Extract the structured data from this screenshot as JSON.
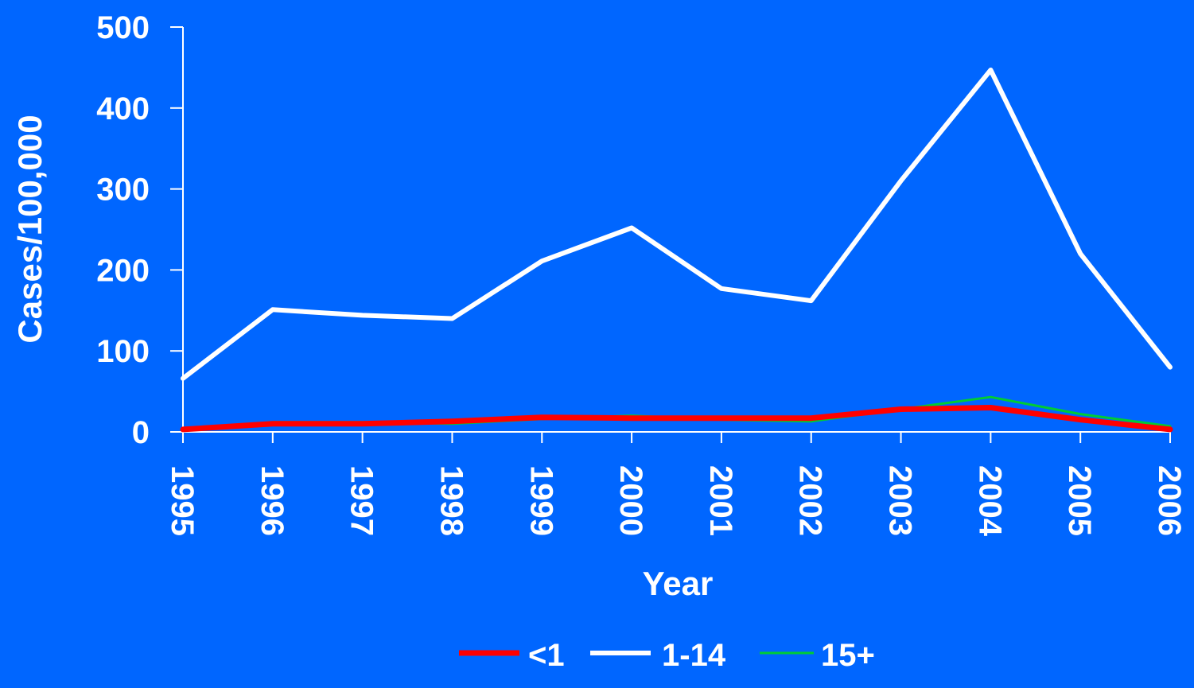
{
  "colors": {
    "background": "#0066ff",
    "axis": "#ffffff",
    "series_lt1": "#ff0000",
    "series_1_14": "#ffffff",
    "series_15plus": "#00cc33"
  },
  "chart_data": {
    "type": "line",
    "title": "",
    "xlabel": "Year",
    "ylabel": "Cases/100,000",
    "ylim": [
      0,
      500
    ],
    "yticks": [
      "0",
      "100",
      "200",
      "300",
      "400",
      "500"
    ],
    "grid": false,
    "legend_position": "bottom-center",
    "x": [
      "1995",
      "1996",
      "1997",
      "1998",
      "1999",
      "2000",
      "2001",
      "2002",
      "2003",
      "2004",
      "2005",
      "2006"
    ],
    "series": [
      {
        "name": "<1",
        "color": "#ff0000",
        "values": [
          3,
          10,
          10,
          13,
          18,
          17,
          17,
          17,
          28,
          30,
          15,
          3
        ]
      },
      {
        "name": "1-14",
        "color": "#ffffff",
        "values": [
          66,
          151,
          144,
          140,
          211,
          252,
          177,
          162,
          310,
          447,
          220,
          80
        ]
      },
      {
        "name": "15+",
        "color": "#00cc33",
        "values": [
          2,
          12,
          12,
          10,
          16,
          20,
          15,
          13,
          28,
          43,
          22,
          7
        ]
      }
    ]
  }
}
